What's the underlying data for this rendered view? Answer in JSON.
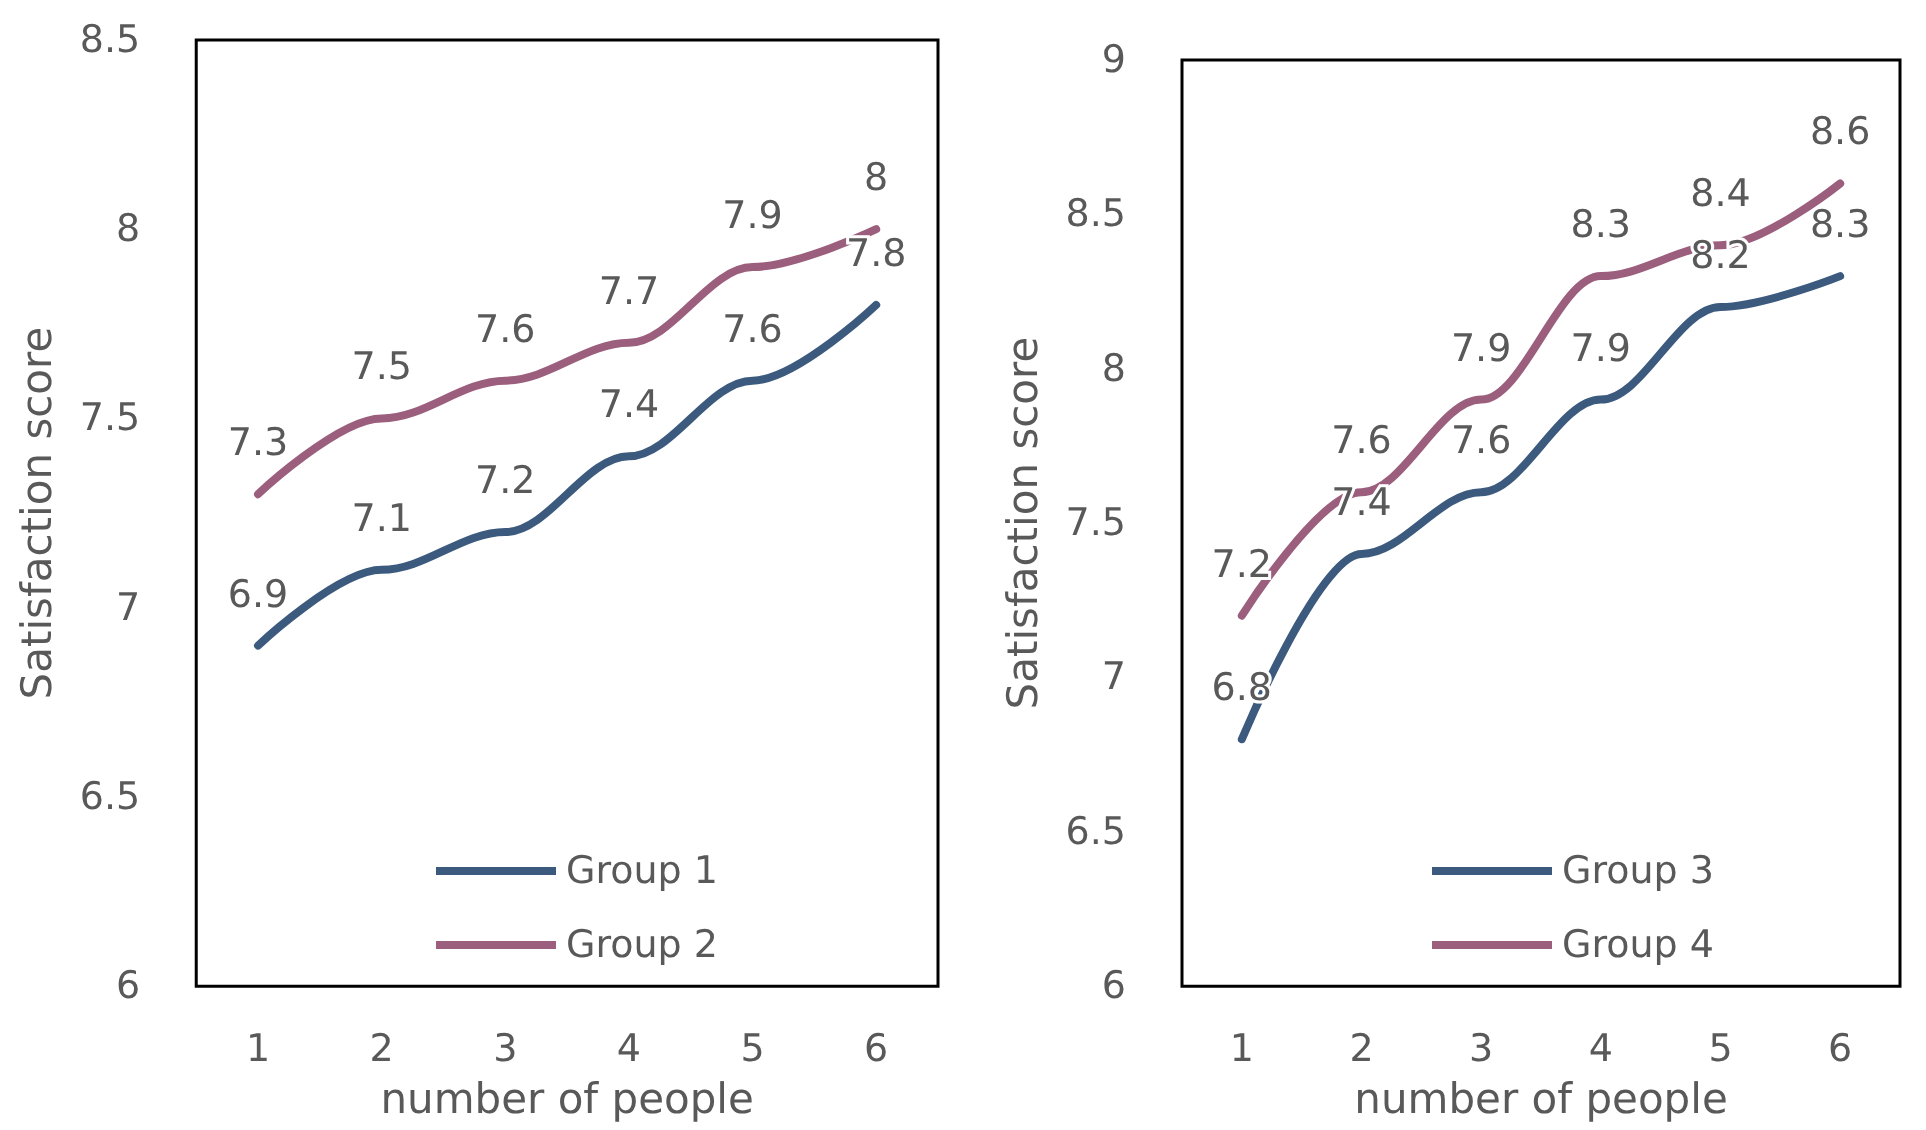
{
  "chart_data": [
    {
      "type": "line",
      "xlabel": "number of people",
      "ylabel": "Satisfaction score",
      "categories": [
        "1",
        "2",
        "3",
        "4",
        "5",
        "6"
      ],
      "ylim": [
        6,
        8.5
      ],
      "yticks": [
        6,
        6.5,
        7,
        7.5,
        8,
        8.5
      ],
      "grid": false,
      "legend": "bottom",
      "marker": "none",
      "line_style": "solid",
      "data_labels": true,
      "series": [
        {
          "name": "Group 1",
          "color": "#3b5a7d",
          "values": [
            6.9,
            7.1,
            7.2,
            7.4,
            7.6,
            7.8
          ]
        },
        {
          "name": "Group 2",
          "color": "#9b5f7d",
          "values": [
            7.3,
            7.5,
            7.6,
            7.7,
            7.9,
            8
          ]
        }
      ]
    },
    {
      "type": "line",
      "xlabel": "number of people",
      "ylabel": "Satisfaction score",
      "categories": [
        "1",
        "2",
        "3",
        "4",
        "5",
        "6"
      ],
      "ylim": [
        6,
        9
      ],
      "yticks": [
        6,
        6.5,
        7,
        7.5,
        8,
        8.5,
        9
      ],
      "grid": false,
      "legend": "bottom",
      "marker": "none",
      "line_style": "solid",
      "data_labels": true,
      "series": [
        {
          "name": "Group 3",
          "color": "#3b5a7d",
          "values": [
            6.8,
            7.4,
            7.6,
            7.9,
            8.2,
            8.3
          ]
        },
        {
          "name": "Group 4",
          "color": "#9b5f7d",
          "values": [
            7.2,
            7.6,
            7.9,
            8.3,
            8.4,
            8.6
          ]
        }
      ]
    }
  ]
}
